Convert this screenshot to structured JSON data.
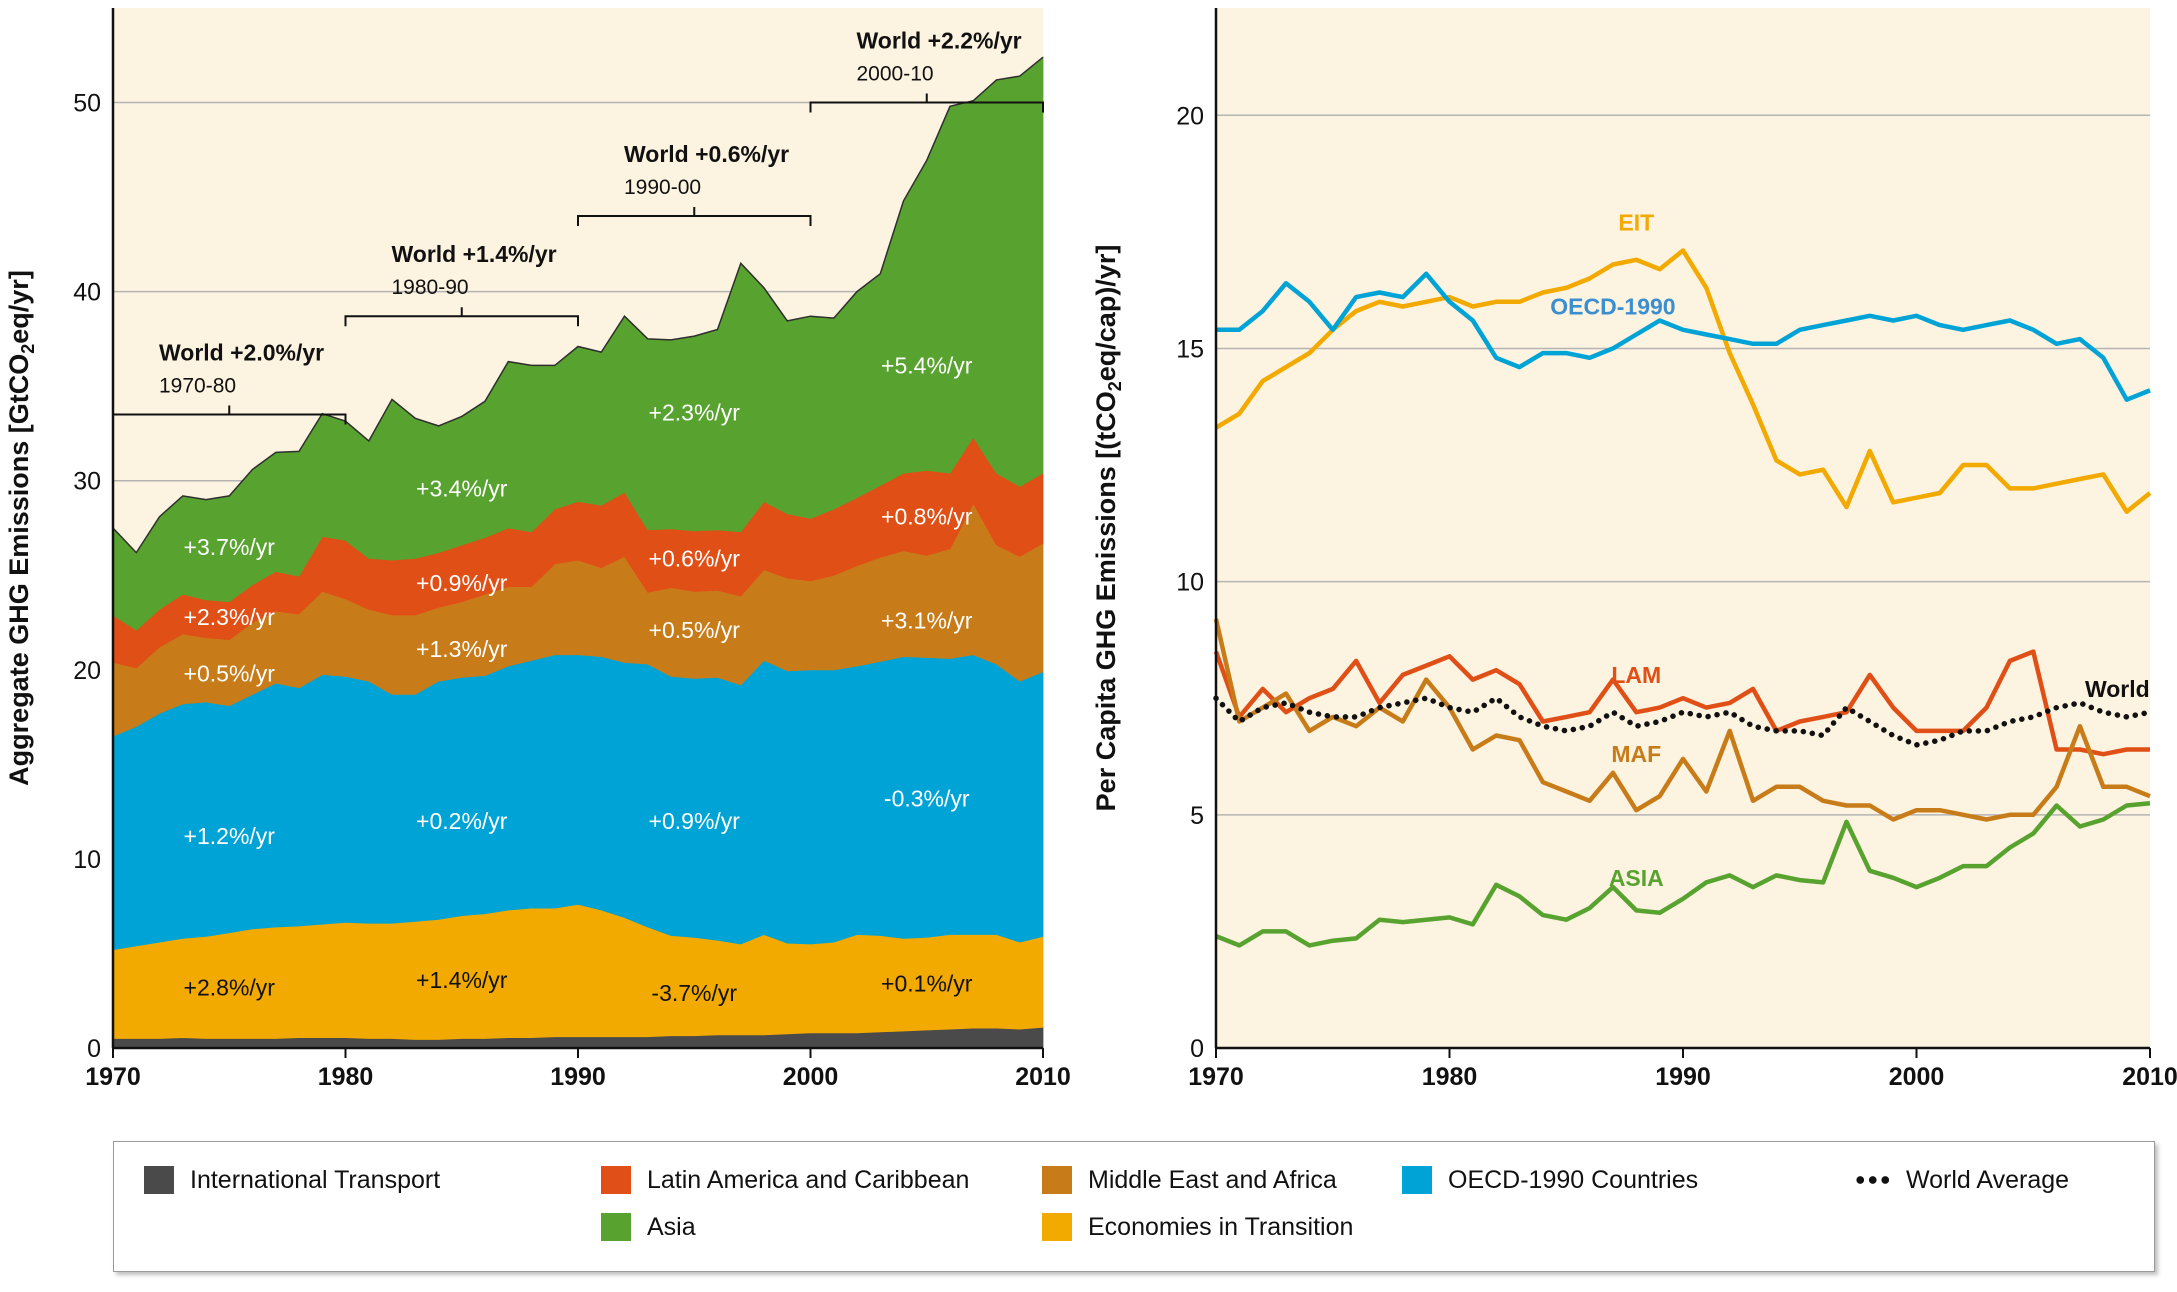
{
  "chart_data": [
    {
      "type": "area",
      "stacked": true,
      "ylabel_main": "Aggregate GHG Emissions [GtCO",
      "ylabel_sub": "2",
      "ylabel_end": "eq/yr]",
      "xlim": [
        1970,
        2010
      ],
      "ylim": [
        0,
        55
      ],
      "xticks": [
        1970,
        1980,
        1990,
        2000,
        2010
      ],
      "yticks": [
        0,
        10,
        20,
        30,
        40,
        50
      ],
      "grid": true,
      "x": [
        1970,
        1971,
        1972,
        1973,
        1974,
        1975,
        1976,
        1977,
        1978,
        1979,
        1980,
        1981,
        1982,
        1983,
        1984,
        1985,
        1986,
        1987,
        1988,
        1989,
        1990,
        1991,
        1992,
        1993,
        1994,
        1995,
        1996,
        1997,
        1998,
        1999,
        2000,
        2001,
        2002,
        2003,
        2004,
        2005,
        2006,
        2007,
        2008,
        2009,
        2010
      ],
      "series": [
        {
          "name": "International Transport",
          "color": "#4a4a4a",
          "values": [
            0.5,
            0.5,
            0.5,
            0.55,
            0.5,
            0.5,
            0.5,
            0.5,
            0.55,
            0.55,
            0.55,
            0.5,
            0.5,
            0.45,
            0.45,
            0.5,
            0.5,
            0.55,
            0.55,
            0.6,
            0.6,
            0.6,
            0.6,
            0.6,
            0.65,
            0.65,
            0.7,
            0.7,
            0.7,
            0.75,
            0.8,
            0.8,
            0.8,
            0.85,
            0.9,
            0.95,
            1.0,
            1.05,
            1.05,
            1.0,
            1.1
          ]
        },
        {
          "name": "Economies in Transition",
          "color": "#f2a900",
          "values": [
            4.7,
            4.9,
            5.1,
            5.25,
            5.4,
            5.6,
            5.8,
            5.9,
            5.9,
            6.0,
            6.1,
            6.1,
            6.1,
            6.25,
            6.35,
            6.5,
            6.6,
            6.75,
            6.85,
            6.8,
            7.0,
            6.7,
            6.3,
            5.8,
            5.3,
            5.2,
            5.0,
            4.8,
            5.3,
            4.8,
            4.7,
            4.8,
            5.2,
            5.1,
            4.9,
            4.9,
            5.0,
            4.95,
            4.95,
            4.6,
            4.8
          ]
        },
        {
          "name": "OECD-1990 Countries",
          "color": "#00a3d6",
          "values": [
            11.3,
            11.6,
            12.1,
            12.4,
            12.4,
            12.0,
            12.4,
            12.9,
            12.6,
            13.2,
            13.0,
            12.8,
            12.1,
            12.0,
            12.6,
            12.6,
            12.6,
            12.9,
            13.1,
            13.4,
            13.2,
            13.4,
            13.5,
            13.9,
            13.7,
            13.7,
            13.9,
            13.7,
            14.5,
            14.4,
            14.5,
            14.4,
            14.2,
            14.5,
            14.9,
            14.8,
            14.6,
            14.8,
            14.3,
            13.8,
            14.0
          ]
        },
        {
          "name": "Middle East and Africa",
          "color": "#c87c19",
          "values": [
            3.9,
            3.1,
            3.5,
            3.7,
            3.4,
            3.5,
            3.8,
            3.8,
            3.9,
            4.4,
            4.1,
            3.8,
            4.2,
            4.2,
            3.9,
            4.0,
            4.3,
            4.2,
            3.9,
            4.8,
            5.0,
            4.7,
            5.6,
            3.8,
            4.7,
            4.6,
            4.6,
            4.7,
            4.8,
            4.9,
            4.7,
            5.0,
            5.3,
            5.5,
            5.6,
            5.4,
            5.8,
            8.0,
            6.3,
            6.6,
            6.8
          ]
        },
        {
          "name": "Latin America and Caribbean",
          "color": "#e04f16",
          "values": [
            2.5,
            2.0,
            2.0,
            2.1,
            2.0,
            2.0,
            2.0,
            2.1,
            2.0,
            2.9,
            3.1,
            2.7,
            2.9,
            3.0,
            2.9,
            3.0,
            3.0,
            3.1,
            2.9,
            2.9,
            3.1,
            3.3,
            3.4,
            3.3,
            3.1,
            3.2,
            3.2,
            3.4,
            3.6,
            3.4,
            3.3,
            3.5,
            3.6,
            3.8,
            4.1,
            4.5,
            4.0,
            3.5,
            3.8,
            3.7,
            3.7
          ]
        },
        {
          "name": "Asia",
          "color": "#58a32f",
          "values": [
            4.6,
            4.1,
            4.9,
            5.2,
            5.3,
            5.6,
            6.1,
            6.3,
            6.6,
            6.5,
            6.3,
            6.2,
            8.5,
            7.4,
            6.7,
            6.8,
            7.2,
            8.8,
            8.8,
            7.6,
            8.2,
            8.1,
            9.3,
            10.1,
            10.0,
            10.3,
            10.6,
            14.2,
            11.3,
            10.2,
            10.7,
            10.1,
            10.9,
            11.2,
            14.4,
            16.4,
            19.4,
            17.8,
            20.8,
            21.7,
            22.0
          ]
        }
      ],
      "brackets": [
        {
          "title": "World +2.0%/yr",
          "period": "1970-80",
          "x0": 1970,
          "x1": 1980,
          "y": 33.5
        },
        {
          "title": "World +1.4%/yr",
          "period": "1980-90",
          "x0": 1980,
          "x1": 1990,
          "y": 38.7
        },
        {
          "title": "World +0.6%/yr",
          "period": "1990-00",
          "x0": 1990,
          "x1": 2000,
          "y": 44.0
        },
        {
          "title": "World +2.2%/yr",
          "period": "2000-10",
          "x0": 2000,
          "x1": 2010,
          "y": 50.0
        }
      ],
      "annotations": [
        {
          "text": "+3.7%/yr",
          "x": 1975,
          "y": 26.5,
          "color": "#ffffff"
        },
        {
          "text": "+2.3%/yr",
          "x": 1975,
          "y": 22.8,
          "color": "#ffffff"
        },
        {
          "text": "+0.5%/yr",
          "x": 1975,
          "y": 19.8,
          "color": "#ffffff"
        },
        {
          "text": "+1.2%/yr",
          "x": 1975,
          "y": 11.2,
          "color": "#ffffff"
        },
        {
          "text": "+2.8%/yr",
          "x": 1975,
          "y": 3.2,
          "color": "#111111"
        },
        {
          "text": "+3.4%/yr",
          "x": 1985,
          "y": 29.6,
          "color": "#ffffff"
        },
        {
          "text": "+0.9%/yr",
          "x": 1985,
          "y": 24.6,
          "color": "#ffffff"
        },
        {
          "text": "+1.3%/yr",
          "x": 1985,
          "y": 21.1,
          "color": "#ffffff"
        },
        {
          "text": "+0.2%/yr",
          "x": 1985,
          "y": 12.0,
          "color": "#ffffff"
        },
        {
          "text": "+1.4%/yr",
          "x": 1985,
          "y": 3.6,
          "color": "#111111"
        },
        {
          "text": "+2.3%/yr",
          "x": 1995,
          "y": 33.6,
          "color": "#ffffff"
        },
        {
          "text": "+0.6%/yr",
          "x": 1995,
          "y": 25.9,
          "color": "#ffffff"
        },
        {
          "text": "+0.5%/yr",
          "x": 1995,
          "y": 22.1,
          "color": "#ffffff"
        },
        {
          "text": "+0.9%/yr",
          "x": 1995,
          "y": 12.0,
          "color": "#ffffff"
        },
        {
          "text": "-3.7%/yr",
          "x": 1995,
          "y": 2.9,
          "color": "#111111"
        },
        {
          "text": "+5.4%/yr",
          "x": 2005,
          "y": 36.1,
          "color": "#ffffff"
        },
        {
          "text": "+0.8%/yr",
          "x": 2005,
          "y": 28.1,
          "color": "#ffffff"
        },
        {
          "text": "+3.1%/yr",
          "x": 2005,
          "y": 22.6,
          "color": "#ffffff"
        },
        {
          "text": "-0.3%/yr",
          "x": 2005,
          "y": 13.2,
          "color": "#ffffff"
        },
        {
          "text": "+0.1%/yr",
          "x": 2005,
          "y": 3.4,
          "color": "#111111"
        }
      ]
    },
    {
      "type": "line",
      "ylabel_main": "Per Capita GHG Emissions [(tCO",
      "ylabel_sub": "2",
      "ylabel_end": "eq/cap)/yr]",
      "xlim": [
        1970,
        2010
      ],
      "ylim": [
        0,
        22.3
      ],
      "xticks": [
        1970,
        1980,
        1990,
        2000,
        2010
      ],
      "yticks": [
        0,
        5,
        10,
        15,
        20
      ],
      "grid": true,
      "x": [
        1970,
        1971,
        1972,
        1973,
        1974,
        1975,
        1976,
        1977,
        1978,
        1979,
        1980,
        1981,
        1982,
        1983,
        1984,
        1985,
        1986,
        1987,
        1988,
        1989,
        1990,
        1991,
        1992,
        1993,
        1994,
        1995,
        1996,
        1997,
        1998,
        1999,
        2000,
        2001,
        2002,
        2003,
        2004,
        2005,
        2006,
        2007,
        2008,
        2009,
        2010
      ],
      "series": [
        {
          "name": "EIT",
          "color": "#f2a900",
          "style": "solid",
          "label_x": 1988,
          "label_y": 17.7,
          "values": [
            13.3,
            13.6,
            14.3,
            14.6,
            14.9,
            15.4,
            15.8,
            16.0,
            15.9,
            16.0,
            16.1,
            15.9,
            16.0,
            16.0,
            16.2,
            16.3,
            16.5,
            16.8,
            16.9,
            16.7,
            17.1,
            16.3,
            14.9,
            13.8,
            12.6,
            12.3,
            12.4,
            11.6,
            12.8,
            11.7,
            11.8,
            11.9,
            12.5,
            12.5,
            12.0,
            12.0,
            12.1,
            12.2,
            12.3,
            11.5,
            11.9
          ]
        },
        {
          "name": "OECD-1990",
          "color": "#00a3d6",
          "style": "solid",
          "label_x": 1987,
          "label_y": 15.9,
          "label_color": "#3b8fd0",
          "values": [
            15.4,
            15.4,
            15.8,
            16.4,
            16.0,
            15.4,
            16.1,
            16.2,
            16.1,
            16.6,
            16.0,
            15.6,
            14.8,
            14.6,
            14.9,
            14.9,
            14.8,
            15.0,
            15.3,
            15.6,
            15.4,
            15.3,
            15.2,
            15.1,
            15.1,
            15.4,
            15.5,
            15.6,
            15.7,
            15.6,
            15.7,
            15.5,
            15.4,
            15.5,
            15.6,
            15.4,
            15.1,
            15.2,
            14.8,
            13.9,
            14.1
          ]
        },
        {
          "name": "LAM",
          "color": "#e04f16",
          "style": "solid",
          "label_x": 1988,
          "label_y": 8.0,
          "values": [
            8.5,
            7.1,
            7.7,
            7.2,
            7.5,
            7.7,
            8.3,
            7.4,
            8.0,
            8.2,
            8.4,
            7.9,
            8.1,
            7.8,
            7.0,
            7.1,
            7.2,
            7.9,
            7.2,
            7.3,
            7.5,
            7.3,
            7.4,
            7.7,
            6.8,
            7.0,
            7.1,
            7.2,
            8.0,
            7.3,
            6.8,
            6.8,
            6.8,
            7.3,
            8.3,
            8.5,
            6.4,
            6.4,
            6.3,
            6.4,
            6.4
          ]
        },
        {
          "name": "MAF",
          "color": "#c87c19",
          "style": "solid",
          "label_x": 1988,
          "label_y": 6.3,
          "values": [
            9.2,
            7.0,
            7.3,
            7.6,
            6.8,
            7.1,
            6.9,
            7.3,
            7.0,
            7.9,
            7.3,
            6.4,
            6.7,
            6.6,
            5.7,
            5.5,
            5.3,
            5.9,
            5.1,
            5.4,
            6.2,
            5.5,
            6.8,
            5.3,
            5.6,
            5.6,
            5.3,
            5.2,
            5.2,
            4.9,
            5.1,
            5.1,
            5.0,
            4.9,
            5.0,
            5.0,
            5.6,
            6.9,
            5.6,
            5.6,
            5.4
          ]
        },
        {
          "name": "ASIA",
          "color": "#58a32f",
          "style": "solid",
          "label_x": 1988,
          "label_y": 3.65,
          "values": [
            2.4,
            2.2,
            2.5,
            2.5,
            2.2,
            2.3,
            2.35,
            2.75,
            2.7,
            2.75,
            2.8,
            2.65,
            3.5,
            3.25,
            2.85,
            2.75,
            3.0,
            3.45,
            2.95,
            2.9,
            3.2,
            3.55,
            3.7,
            3.45,
            3.7,
            3.6,
            3.55,
            4.85,
            3.8,
            3.65,
            3.45,
            3.65,
            3.9,
            3.9,
            4.3,
            4.6,
            5.2,
            4.75,
            4.9,
            5.2,
            5.25
          ]
        },
        {
          "name": "World",
          "color": "#111111",
          "style": "dotted",
          "label_x": 2008.6,
          "label_y": 7.7,
          "values": [
            7.5,
            7.0,
            7.3,
            7.4,
            7.2,
            7.1,
            7.1,
            7.3,
            7.4,
            7.5,
            7.3,
            7.2,
            7.5,
            7.1,
            6.9,
            6.8,
            6.9,
            7.2,
            6.9,
            7.0,
            7.2,
            7.1,
            7.2,
            6.9,
            6.8,
            6.8,
            6.7,
            7.3,
            7.0,
            6.7,
            6.5,
            6.6,
            6.8,
            6.8,
            7.0,
            7.1,
            7.3,
            7.4,
            7.2,
            7.1,
            7.2
          ]
        }
      ]
    }
  ],
  "legend": [
    {
      "label": "International Transport",
      "color": "#4a4a4a",
      "kind": "swatch"
    },
    {
      "label": "Latin America and Caribbean",
      "color": "#e04f16",
      "kind": "swatch"
    },
    {
      "label": "Asia",
      "color": "#58a32f",
      "kind": "swatch"
    },
    {
      "label": "Middle East and Africa",
      "color": "#c87c19",
      "kind": "swatch"
    },
    {
      "label": "Economies in Transition",
      "color": "#f2a900",
      "kind": "swatch"
    },
    {
      "label": "OECD-1990 Countries",
      "color": "#00a3d6",
      "kind": "swatch"
    },
    {
      "label": "World Average",
      "color": "#111111",
      "kind": "dots"
    }
  ],
  "colors": {
    "plot_background": "#fdf3e1",
    "grid": "#b4b4b4",
    "axis": "#111111"
  }
}
